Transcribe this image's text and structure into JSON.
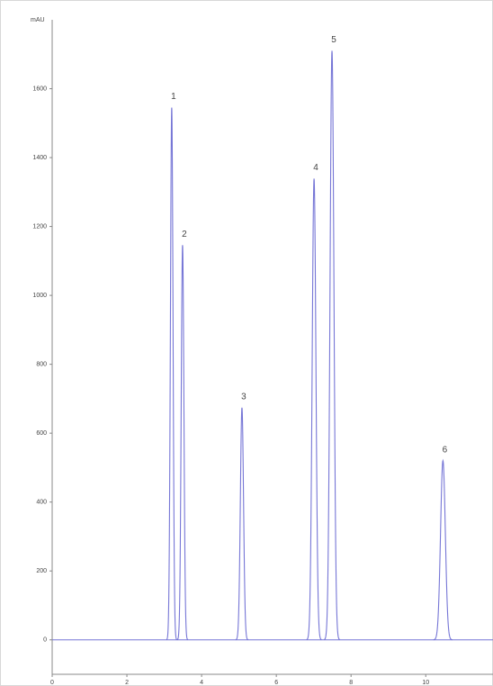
{
  "chart_data": {
    "type": "chromatogram",
    "y_label": "mAU",
    "categories": [
      "1",
      "2",
      "3",
      "4",
      "5",
      "6"
    ],
    "x": [
      3.2,
      3.49,
      5.08,
      7.01,
      7.49,
      10.46
    ],
    "values": [
      1545,
      1146,
      674,
      1339,
      1710,
      520
    ],
    "color": "#7676d6",
    "xlim": [
      0,
      11.8
    ],
    "xticks": [
      0,
      2,
      4,
      6,
      8,
      10
    ],
    "ylim": [
      -100,
      1800
    ],
    "yticks": [
      0,
      200,
      400,
      600,
      800,
      1000,
      1200,
      1400,
      1600
    ],
    "grid": false
  }
}
